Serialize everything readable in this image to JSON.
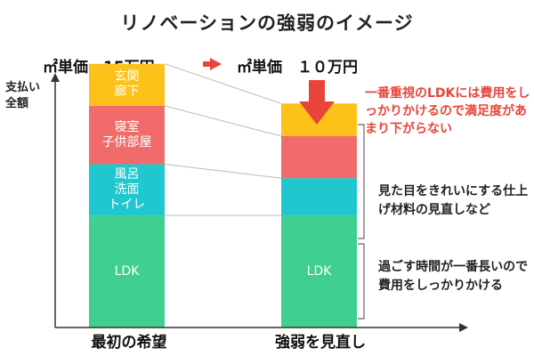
{
  "title": "リノベーションの強弱のイメージ",
  "price_left": "㎡単価　15万円",
  "price_right": "㎡単価　１０万円",
  "axis_label": "支払い\n全額",
  "categories": [
    "最初の希望",
    "強弱を見直し"
  ],
  "colors": {
    "ldk": "#3fcf8e",
    "bath": "#1fc7cf",
    "bed": "#f26b6b",
    "entrance": "#fcc219",
    "accent": "#e8443a"
  },
  "chart_data": {
    "type": "bar",
    "stacked": true,
    "categories": [
      "最初の希望",
      "強弱を見直し"
    ],
    "series": [
      {
        "name": "LDK",
        "label": "LDK",
        "values": [
          48,
          48
        ]
      },
      {
        "name": "風呂洗面トイレ",
        "label": "風呂\n洗面\nトイレ",
        "values": [
          22,
          16
        ]
      },
      {
        "name": "寝室子供部屋",
        "label": "寝室\n子供部屋",
        "values": [
          25,
          18
        ]
      },
      {
        "name": "玄関廊下",
        "label": "玄関\n廊下",
        "values": [
          18,
          14
        ]
      }
    ],
    "ylabel": "支払い全額",
    "ylim": [
      0,
      120
    ]
  },
  "notes": {
    "red": "一番重視のLDKには費用をしっかりかけるので満足度があまり下がらない",
    "middle": "見た目をきれいにする仕上げ材料の見直しなど",
    "bottom": "過ごす時間が一番長いので費用をしっかりかける"
  },
  "icons": [
    "arrow-right-icon",
    "arrow-down-icon",
    "bracket-icon"
  ]
}
